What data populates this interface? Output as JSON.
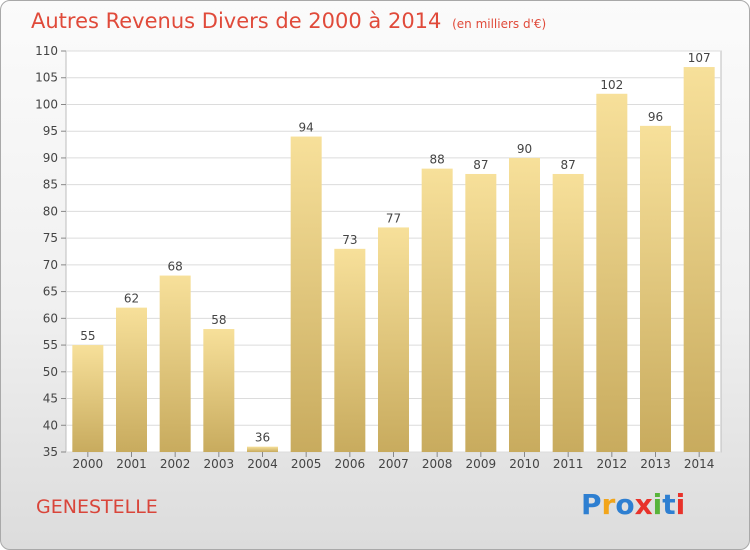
{
  "title": "Autres Revenus Divers de 2000 à 2014",
  "subtitle": "(en milliers d'€)",
  "location": "GENESTELLE",
  "logo": {
    "text": "Proxiti",
    "colors": [
      "#2e7fd1",
      "#f2a51a",
      "#2e7fd1",
      "#e8322a",
      "#58b43a",
      "#2e7fd1",
      "#e8322a"
    ]
  },
  "chart_data": {
    "type": "bar",
    "categories": [
      "2000",
      "2001",
      "2002",
      "2003",
      "2004",
      "2005",
      "2006",
      "2007",
      "2008",
      "2009",
      "2010",
      "2011",
      "2012",
      "2013",
      "2014"
    ],
    "values": [
      55,
      62,
      68,
      58,
      36,
      94,
      73,
      77,
      88,
      87,
      90,
      87,
      102,
      96,
      107
    ],
    "ylim": [
      35,
      110
    ],
    "yticks": [
      35,
      40,
      45,
      50,
      55,
      60,
      65,
      70,
      75,
      80,
      85,
      90,
      95,
      100,
      105,
      110
    ],
    "grid": true,
    "bar_color_top": "#f7e09a",
    "bar_color_bottom": "#c8ab5e"
  }
}
